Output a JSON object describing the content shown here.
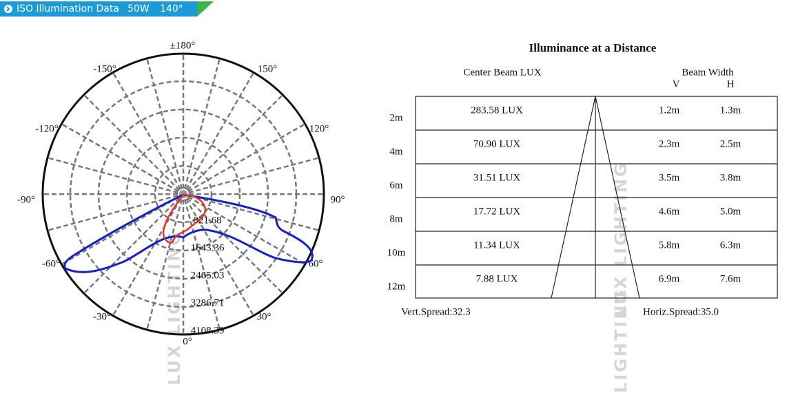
{
  "header": {
    "title": "ISO Illumination Data",
    "power": "50W",
    "angle": "140°"
  },
  "watermark": [
    "LUX LIGHTING",
    "LUX LIGHTING",
    "LIGHTING"
  ],
  "polar": {
    "angle_labels": [
      "±180°",
      "-150°",
      "150°",
      "-120°",
      "120°",
      "-90°",
      "90°",
      "-60°",
      "60°",
      "-30°",
      "30°",
      "0°"
    ],
    "ring_labels": [
      "821.68",
      "1643.36",
      "2465.03",
      "3286.71",
      "4108.39"
    ]
  },
  "table": {
    "title": "Illuminance at a Distance",
    "center_header": "Center Beam LUX",
    "width_header": "Beam Width",
    "v_header": "V",
    "h_header": "H",
    "rows": [
      [
        "2m",
        "283.58 LUX",
        "1.2m",
        "1.3m"
      ],
      [
        "4m",
        "70.90 LUX",
        "2.3m",
        "2.5m"
      ],
      [
        "6m",
        "31.51 LUX",
        "3.5m",
        "3.8m"
      ],
      [
        "8m",
        "17.72 LUX",
        "4.6m",
        "5.0m"
      ],
      [
        "10m",
        "11.34 LUX",
        "5.8m",
        "6.3m"
      ],
      [
        "12m",
        "7.88 LUX",
        "6.9m",
        "7.6m"
      ]
    ],
    "vert_spread": "Vert.Spread:32.3",
    "horiz_spread": "Horiz.Spread:35.0"
  }
}
